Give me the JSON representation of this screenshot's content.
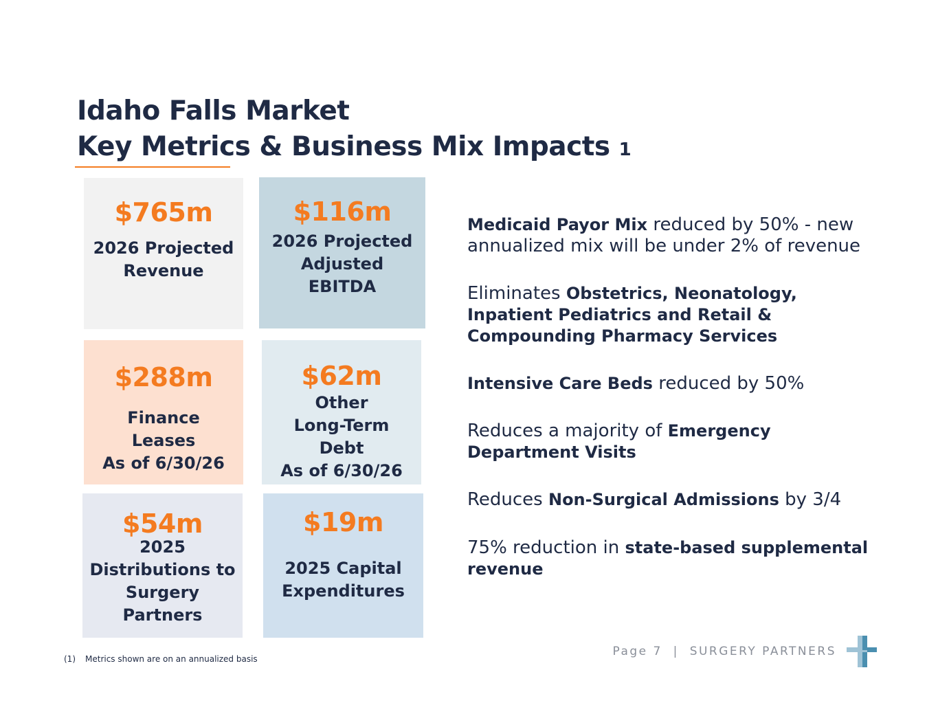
{
  "title": {
    "line1": "Idaho Falls Market",
    "line2": "Key Metrics & Business Mix Impacts",
    "superscript": "1"
  },
  "metrics": [
    {
      "value": "$765m",
      "label": "2026 Projected\nRevenue"
    },
    {
      "value": "$116m",
      "label": "2026 Projected\nAdjusted\nEBITDA"
    },
    {
      "value": "$288m",
      "label": "Finance\nLeases\nAs of 6/30/26"
    },
    {
      "value": "$62m",
      "label": "Other\nLong-Term\nDebt\nAs of 6/30/26"
    },
    {
      "value": "$54m",
      "label": "2025\nDistributions to\nSurgery\nPartners"
    },
    {
      "value": "$19m",
      "label": "2025 Capital\nExpenditures"
    }
  ],
  "bullets": [
    {
      "parts": [
        {
          "bold": true,
          "text": "Medicaid Payor Mix"
        },
        {
          "bold": false,
          "text": " reduced by 50% - new annualized mix will be under 2% of revenue"
        }
      ]
    },
    {
      "parts": [
        {
          "bold": false,
          "text": "Eliminates "
        },
        {
          "bold": true,
          "text": "Obstetrics, Neonatology, Inpatient Pediatrics and Retail & Compounding Pharmacy Services"
        }
      ]
    },
    {
      "parts": [
        {
          "bold": true,
          "text": "Intensive Care Beds"
        },
        {
          "bold": false,
          "text": " reduced by 50%"
        }
      ]
    },
    {
      "parts": [
        {
          "bold": false,
          "text": "Reduces a majority of "
        },
        {
          "bold": true,
          "text": "Emergency Department Visits"
        }
      ]
    },
    {
      "parts": [
        {
          "bold": false,
          "text": "Reduces "
        },
        {
          "bold": true,
          "text": "Non-Surgical Admissions"
        },
        {
          "bold": false,
          "text": " by 3/4"
        }
      ]
    },
    {
      "parts": [
        {
          "bold": false,
          "text": "75% reduction in "
        },
        {
          "bold": true,
          "text": "state-based supplemental revenue"
        }
      ]
    }
  ],
  "footnote": {
    "number": "(1)",
    "text": "Metrics shown are on an annualized basis"
  },
  "footer": {
    "page": "Page 7",
    "separator": "|",
    "company": "SURGERY PARTNERS"
  },
  "logo": {
    "icon": "surgery-partners-cross-logo",
    "color_light": "#9fc3d6",
    "color_dark": "#4a8fb0"
  },
  "colors": {
    "accent": "#f47b20",
    "navy": "#1f2a44"
  }
}
